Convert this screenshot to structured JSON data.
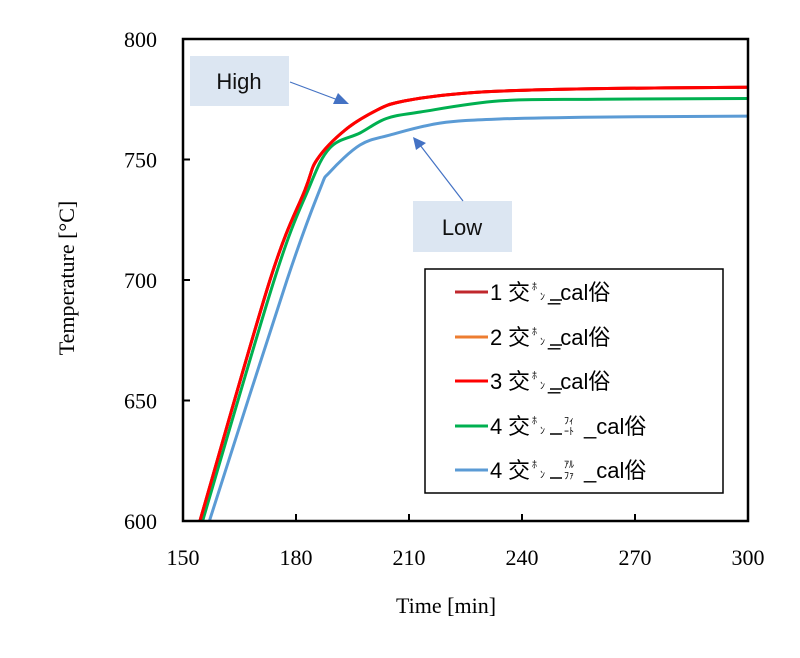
{
  "chart_data": {
    "type": "line",
    "title": "",
    "xlabel": "Time [min]",
    "ylabel": "Temperature [°C]",
    "xlim": [
      150,
      300
    ],
    "ylim": [
      600,
      800
    ],
    "xticks": [
      150,
      180,
      210,
      240,
      270,
      300
    ],
    "yticks": [
      600,
      650,
      700,
      750,
      800
    ],
    "xtick_labels": [
      "150",
      "180",
      "210",
      "240",
      "270",
      "300"
    ],
    "ytick_labels": [
      "600",
      "650",
      "700",
      "750",
      "800"
    ],
    "grid": false,
    "legend_position": "center-right",
    "series": [
      {
        "name": "1 交ﾎﾝ_cal俗",
        "color": "#C0282D",
        "x": [
          154.5,
          173.1,
          182.4,
          185.6,
          193,
          201.5,
          207.6,
          220,
          234,
          260,
          300
        ],
        "y": [
          600,
          700,
          737.4,
          750,
          762.2,
          770.5,
          773.9,
          776.8,
          778.4,
          779.4,
          780
        ]
      },
      {
        "name": "2 交ﾎﾝ_cal俗",
        "color": "#ED7D31",
        "x": [
          154.5,
          173.1,
          182.4,
          185.6,
          193,
          201.5,
          207.6,
          220,
          234,
          260,
          300
        ],
        "y": [
          600,
          700,
          737.4,
          750,
          762.2,
          770.5,
          773.9,
          776.8,
          778.4,
          779.4,
          780
        ]
      },
      {
        "name": "3 交ﾎﾝ_cal俗",
        "color": "#FF0000",
        "x": [
          154.5,
          173.1,
          182.4,
          185.6,
          193,
          201.5,
          207.6,
          220,
          234,
          260,
          300
        ],
        "y": [
          600,
          700,
          737.4,
          750,
          762.2,
          770.5,
          773.9,
          776.8,
          778.4,
          779.4,
          780
        ]
      },
      {
        "name": "4 交ﾎﾝ_ﾌｨｰﾄ_cal俗",
        "color": "#00B050",
        "x": [
          155.2,
          174.2,
          183.2,
          189,
          197,
          204,
          213,
          234,
          260,
          300
        ],
        "y": [
          600,
          700,
          737.4,
          754.8,
          761,
          767,
          769.7,
          774.3,
          775.0,
          775.3
        ]
      },
      {
        "name": "4 交ﾎﾝ_ｱﾙﾌｧ_cal俗",
        "color": "#5B9BD5",
        "x": [
          157,
          177.6,
          186.3,
          189,
          197,
          205,
          218.2,
          234,
          260,
          300
        ],
        "y": [
          600,
          700,
          737.4,
          744.8,
          756,
          760.2,
          765.1,
          766.8,
          767.6,
          768
        ]
      }
    ],
    "annotations": [
      {
        "text": "High",
        "points_to": "upper curves",
        "box_color": "#DCE6F2",
        "arrow_color": "#4472C4"
      },
      {
        "text": "Low",
        "points_to": "lower curve",
        "box_color": "#DCE6F2",
        "arrow_color": "#4472C4"
      }
    ]
  },
  "legend": {
    "items": [
      {
        "num": "1",
        "kanji": "交",
        "kana_top": "ﾎ",
        "kana_bottom": "ﾝ",
        "sub_top": "",
        "sub_bottom": "",
        "tail": "_cal俗"
      },
      {
        "num": "2",
        "kanji": "交",
        "kana_top": "ﾎ",
        "kana_bottom": "ﾝ",
        "sub_top": "",
        "sub_bottom": "",
        "tail": "_cal俗"
      },
      {
        "num": "3",
        "kanji": "交",
        "kana_top": "ﾎ",
        "kana_bottom": "ﾝ",
        "sub_top": "",
        "sub_bottom": "",
        "tail": "_cal俗"
      },
      {
        "num": "4",
        "kanji": "交",
        "kana_top": "ﾎ",
        "kana_bottom": "ﾝ",
        "sub_top": "ﾌｨ",
        "sub_bottom": "ｰﾄ",
        "tail": "_cal俗"
      },
      {
        "num": "4",
        "kanji": "交",
        "kana_top": "ﾎ",
        "kana_bottom": "ﾝ",
        "sub_top": "ｱﾙ",
        "sub_bottom": "ﾌｧ",
        "tail": "_cal俗"
      }
    ]
  }
}
